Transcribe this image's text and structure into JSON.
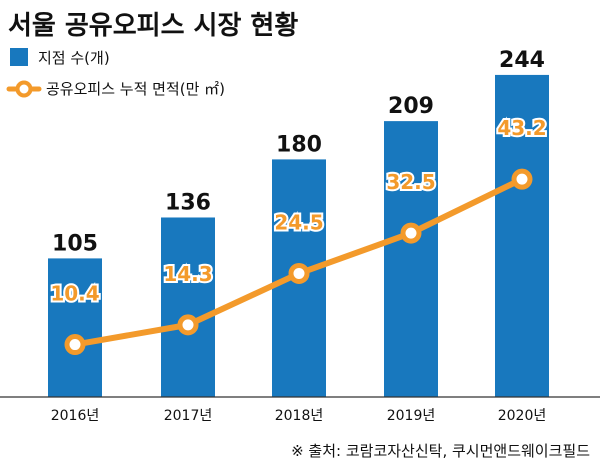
{
  "title": "서울 공유오피스 시장 현황",
  "legend": {
    "bars_label": "지점 수(개)",
    "line_label": "공유오피스 누적 면적(만 ㎡)"
  },
  "source": "※ 출처: 코람코자산신탁, 쿠시먼앤드웨이크필드",
  "colors": {
    "bar": "#1878be",
    "line": "#f39a2b",
    "marker_fill": "#ffffff",
    "axis": "#333333"
  },
  "chart_data": {
    "type": "bar",
    "categories": [
      "2016년",
      "2017년",
      "2018년",
      "2019년",
      "2020년"
    ],
    "series": [
      {
        "name": "지점 수(개)",
        "type": "bar",
        "values": [
          105,
          136,
          180,
          209,
          244
        ],
        "ylim": [
          0,
          250
        ]
      },
      {
        "name": "공유오피스 누적 면적(만 ㎡)",
        "type": "line",
        "values": [
          10.4,
          14.3,
          24.5,
          32.5,
          43.2
        ],
        "ylim": [
          0,
          70
        ]
      }
    ],
    "title": "서울 공유오피스 시장 현황",
    "xlabel": "",
    "ylabel": "",
    "legend_position": "top-left",
    "grid": false
  }
}
